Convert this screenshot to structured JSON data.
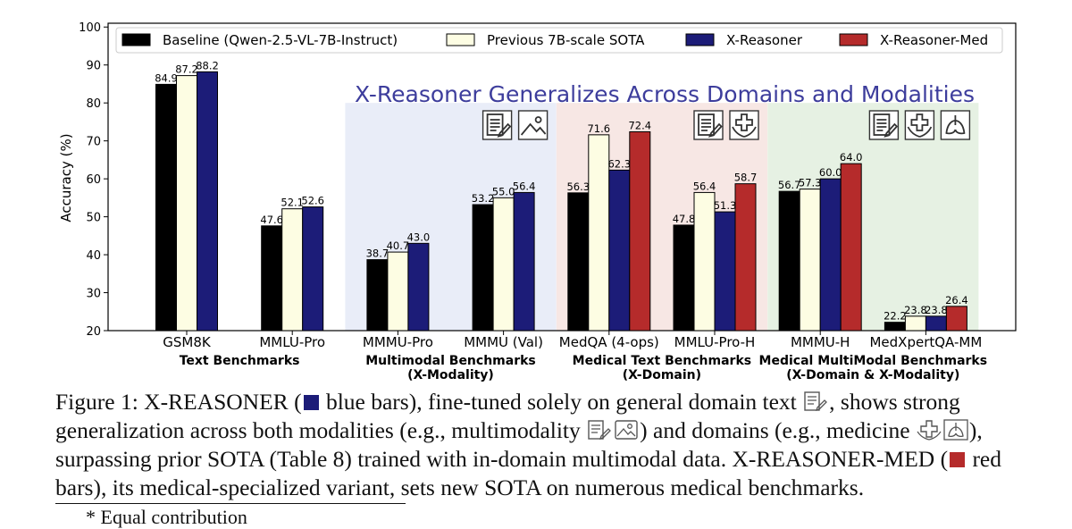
{
  "chart_data": {
    "type": "bar",
    "title": "X-Reasoner Generalizes Across Domains and Modalities",
    "xlabel": "",
    "ylabel": "Accuracy (%)",
    "ylim": [
      20,
      101
    ],
    "yticks": [
      20,
      30,
      40,
      50,
      60,
      70,
      80,
      90,
      100
    ],
    "categories": [
      "GSM8K",
      "MMLU-Pro",
      "MMMU-Pro",
      "MMMU (Val)",
      "MedQA (4-ops)",
      "MMLU-Pro-H",
      "MMMU-H",
      "MedXpertQA-MM"
    ],
    "series": [
      {
        "name": "Baseline (Qwen-2.5-VL-7B-Instruct)",
        "color": "#000000",
        "values": [
          84.9,
          47.6,
          38.7,
          53.2,
          56.3,
          47.8,
          56.7,
          22.2
        ]
      },
      {
        "name": "Previous 7B-scale SOTA",
        "color": "#fdfde3",
        "values": [
          87.2,
          52.1,
          40.7,
          55.0,
          71.6,
          56.4,
          57.3,
          23.8
        ]
      },
      {
        "name": "X-Reasoner",
        "color": "#1c1c78",
        "values": [
          88.2,
          52.6,
          43.0,
          56.4,
          62.3,
          51.3,
          60.0,
          23.8
        ]
      },
      {
        "name": "X-Reasoner-Med",
        "color": "#b52b2b",
        "values": [
          null,
          null,
          null,
          null,
          72.4,
          58.7,
          64.0,
          26.4
        ]
      }
    ],
    "groups": [
      {
        "label": "Text Benchmarks",
        "sublabel": "",
        "categories": [
          0,
          1
        ],
        "shade": "none",
        "icons": []
      },
      {
        "label": "Multimodal Benchmarks",
        "sublabel": "(X-Modality)",
        "categories": [
          2,
          3
        ],
        "shade": "#e9edf8",
        "icons": [
          "text-doc-icon",
          "image-icon"
        ]
      },
      {
        "label": "Medical Text Benchmarks",
        "sublabel": "(X-Domain)",
        "categories": [
          4,
          5
        ],
        "shade": "#f7e7e4",
        "icons": [
          "text-doc-icon",
          "medical-cross-icon"
        ]
      },
      {
        "label": "Medical MultiModal Benchmarks",
        "sublabel": "(X-Domain & X-Modality)",
        "categories": [
          6,
          7
        ],
        "shade": "#e6f1e3",
        "icons": [
          "text-doc-icon",
          "medical-cross-icon",
          "lungs-icon"
        ]
      }
    ],
    "legend_position": "top",
    "grid": false,
    "title_color": "#3d3d9c"
  },
  "caption": {
    "fig_label": "Figure 1: ",
    "name_prefix": "X-R",
    "name_rest": "EASONER",
    "p1": " (",
    "p2": " blue bars), fine-tuned solely on general domain text ",
    "p3": ", shows strong generalization across both modalities (e.g., multimodality ",
    "p4": ") and domains (e.g., medicine ",
    "p5": "), surpassing prior SOTA (Table 8) trained with in-domain multimodal data. ",
    "med_prefix": "X-R",
    "med_rest": "EASONER",
    "med_suffix_1": "-M",
    "med_suffix_2": "ED",
    "p6": " (",
    "p7": " red bars), its medical-specialized variant, sets new SOTA on numerous medical benchmarks."
  },
  "footnote": "* Equal contribution"
}
